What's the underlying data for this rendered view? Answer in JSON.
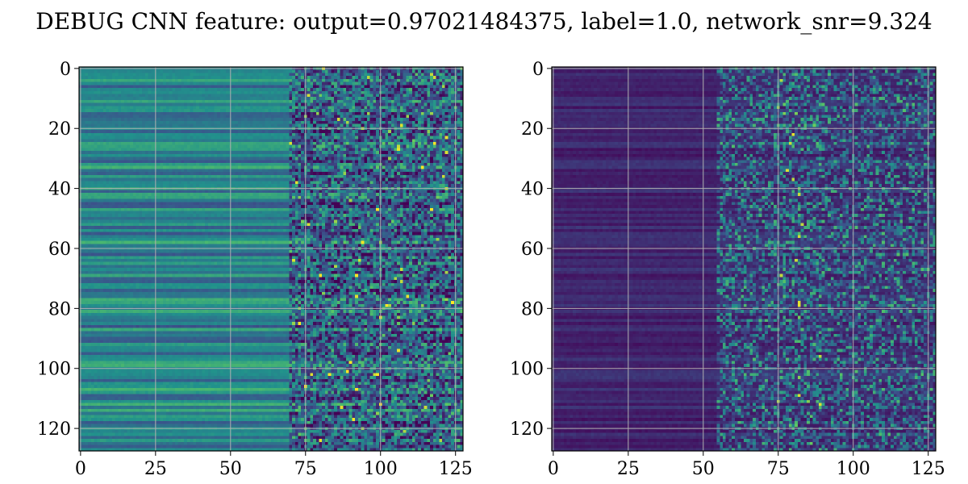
{
  "figure": {
    "title": "DEBUG CNN feature: output=0.97021484375, label=1.0, network_snr=9.324"
  },
  "chart_data": [
    {
      "type": "heatmap",
      "title": "",
      "xlabel": "",
      "ylabel": "",
      "xlim": [
        -0.5,
        127.5
      ],
      "ylim": [
        127.5,
        -0.5
      ],
      "shape": [
        128,
        128
      ],
      "x_ticks": [
        0,
        25,
        50,
        75,
        100,
        125
      ],
      "x_tick_labels": [
        "0",
        "25",
        "50",
        "75",
        "100",
        "125"
      ],
      "y_ticks": [
        0,
        20,
        40,
        60,
        80,
        100,
        120
      ],
      "y_tick_labels": [
        "0",
        "20",
        "40",
        "60",
        "80",
        "100",
        "120"
      ],
      "grid": true,
      "colormap": "viridis",
      "description_of_values": "Horizontal banded structure for columns 0-70; noisy, higher-intensity speckle for columns 75-127."
    },
    {
      "type": "heatmap",
      "title": "",
      "xlabel": "",
      "ylabel": "",
      "xlim": [
        -0.5,
        127.5
      ],
      "ylim": [
        127.5,
        -0.5
      ],
      "shape": [
        128,
        128
      ],
      "x_ticks": [
        0,
        25,
        50,
        75,
        100,
        125
      ],
      "x_tick_labels": [
        "0",
        "25",
        "50",
        "75",
        "100",
        "125"
      ],
      "y_ticks": [
        0,
        20,
        40,
        60,
        80,
        100,
        120
      ],
      "y_tick_labels": [
        "0",
        "20",
        "40",
        "60",
        "80",
        "100",
        "120"
      ],
      "grid": true,
      "colormap": "viridis",
      "description_of_values": "Mostly dark purple; sparse bright speckles for columns 70-127, brightest around column 80."
    }
  ]
}
